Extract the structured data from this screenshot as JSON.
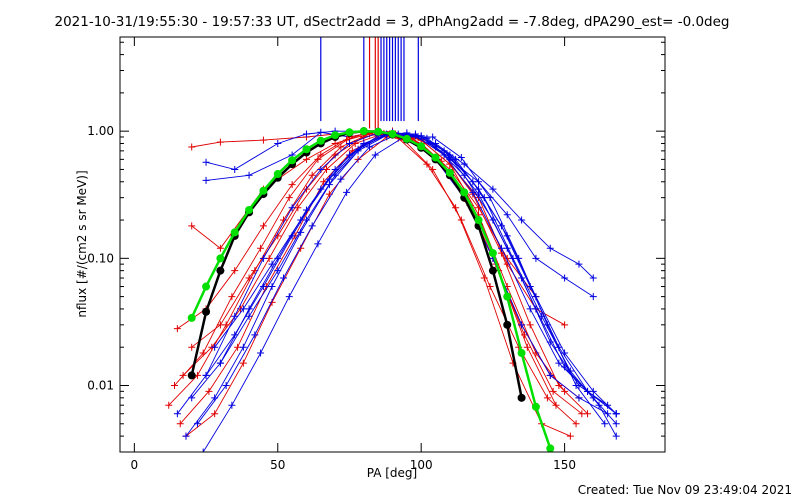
{
  "chart_data": {
    "type": "scatter",
    "title": "2021-10-31/19:55:30 - 19:57:33 UT, dSectr2add = 3, dPhAng2add = -7.8deg, dPA290_est= -0.0deg",
    "xlabel": "PA [deg]",
    "ylabel": "nflux [#/(cm2 s sr MeV)]",
    "x_scale": "linear",
    "y_scale": "log",
    "xlim": [
      -5,
      185
    ],
    "ylim": [
      0.003,
      5.5
    ],
    "x_ticks": [
      0,
      50,
      100,
      150
    ],
    "x_tick_labels": [
      "0",
      "50",
      "100",
      "150"
    ],
    "y_ticks": [
      0.01,
      0.1,
      1.0
    ],
    "y_tick_labels": [
      "0.01",
      "0.10",
      "1.00"
    ],
    "grid": false,
    "legend": "none",
    "footer": "Created: Tue Nov 09 23:49:04 2021",
    "colors": {
      "red": "#e00000",
      "blue": "#0000e0",
      "green": "#00e000",
      "black": "#000000"
    },
    "fit_curves": [
      {
        "color": "green",
        "marker": "filled-circle",
        "x": [
          20,
          25,
          30,
          35,
          40,
          45,
          50,
          55,
          60,
          65,
          70,
          75,
          80,
          85,
          90,
          95,
          100,
          105,
          110,
          115,
          120,
          125,
          130,
          135,
          140,
          145
        ],
        "y": [
          0.034,
          0.06,
          0.1,
          0.16,
          0.24,
          0.34,
          0.46,
          0.59,
          0.72,
          0.84,
          0.93,
          0.98,
          1.0,
          0.99,
          0.95,
          0.87,
          0.76,
          0.62,
          0.47,
          0.33,
          0.2,
          0.11,
          0.05,
          0.018,
          0.0068,
          0.0032
        ]
      },
      {
        "color": "black",
        "marker": "filled-circle",
        "x": [
          20,
          25,
          30,
          35,
          40,
          45,
          50,
          55,
          60,
          65,
          70,
          75,
          80,
          85,
          90,
          95,
          100,
          105,
          110,
          115,
          120,
          125,
          130,
          135
        ],
        "y": [
          0.012,
          0.038,
          0.08,
          0.15,
          0.23,
          0.32,
          0.43,
          0.55,
          0.68,
          0.8,
          0.9,
          0.97,
          1.0,
          0.99,
          0.94,
          0.86,
          0.74,
          0.6,
          0.45,
          0.3,
          0.18,
          0.08,
          0.03,
          0.008
        ]
      }
    ],
    "series": [
      {
        "color": "red",
        "x": [
          20,
          30,
          45,
          60,
          70,
          80,
          85,
          90,
          100,
          110,
          120,
          130,
          140,
          150
        ],
        "y": [
          0.75,
          0.82,
          0.85,
          0.9,
          0.95,
          1.0,
          1.0,
          0.97,
          0.85,
          0.55,
          0.3,
          0.09,
          0.04,
          0.03
        ]
      },
      {
        "color": "blue",
        "x": [
          25,
          35,
          50,
          60,
          70,
          80,
          90,
          100,
          110,
          120,
          130,
          140,
          150,
          160
        ],
        "y": [
          0.57,
          0.5,
          0.8,
          0.95,
          1.0,
          1.0,
          0.97,
          0.9,
          0.6,
          0.4,
          0.22,
          0.1,
          0.07,
          0.05
        ]
      },
      {
        "color": "blue",
        "x": [
          25,
          40,
          55,
          65,
          75,
          85,
          95,
          105,
          115,
          125,
          135,
          145,
          155,
          160
        ],
        "y": [
          0.41,
          0.45,
          0.65,
          0.98,
          0.9,
          1.0,
          0.95,
          0.8,
          0.55,
          0.35,
          0.2,
          0.12,
          0.09,
          0.07
        ]
      },
      {
        "color": "red",
        "x": [
          20,
          30,
          45,
          60,
          70,
          80,
          90,
          100,
          110,
          120,
          130,
          140
        ],
        "y": [
          0.18,
          0.12,
          0.35,
          0.6,
          0.8,
          0.95,
          1.0,
          0.8,
          0.5,
          0.25,
          0.1,
          0.05
        ]
      },
      {
        "color": "red",
        "x": [
          15,
          25,
          35,
          45,
          55,
          65,
          75,
          85,
          95,
          105,
          115,
          125,
          135,
          145,
          155
        ],
        "y": [
          0.028,
          0.04,
          0.08,
          0.18,
          0.38,
          0.65,
          0.9,
          1.0,
          0.9,
          0.6,
          0.3,
          0.1,
          0.03,
          0.012,
          0.008
        ]
      },
      {
        "color": "red",
        "x": [
          12,
          22,
          32,
          42,
          52,
          62,
          72,
          82,
          92,
          102,
          112,
          122,
          132,
          142,
          152
        ],
        "y": [
          0.007,
          0.012,
          0.03,
          0.08,
          0.2,
          0.45,
          0.75,
          0.95,
          0.88,
          0.55,
          0.25,
          0.07,
          0.015,
          0.005,
          0.004
        ]
      },
      {
        "color": "red",
        "x": [
          14,
          24,
          34,
          44,
          54,
          64,
          74,
          84,
          94,
          104,
          114,
          124,
          134,
          144,
          154
        ],
        "y": [
          0.01,
          0.018,
          0.05,
          0.12,
          0.3,
          0.6,
          0.85,
          0.98,
          0.85,
          0.5,
          0.2,
          0.06,
          0.02,
          0.008,
          0.005
        ]
      },
      {
        "color": "red",
        "x": [
          16,
          26,
          36,
          46,
          56,
          66,
          76,
          86,
          96,
          106,
          116,
          126,
          136,
          146,
          156
        ],
        "y": [
          0.005,
          0.009,
          0.02,
          0.06,
          0.15,
          0.4,
          0.7,
          0.93,
          0.9,
          0.6,
          0.28,
          0.09,
          0.025,
          0.009,
          0.006
        ]
      },
      {
        "color": "red",
        "x": [
          18,
          28,
          38,
          48,
          58,
          68,
          78,
          88,
          98,
          108,
          118,
          128,
          138,
          148,
          158
        ],
        "y": [
          0.004,
          0.006,
          0.015,
          0.045,
          0.12,
          0.32,
          0.6,
          0.9,
          0.92,
          0.65,
          0.32,
          0.11,
          0.03,
          0.01,
          0.006
        ]
      },
      {
        "color": "red",
        "x": [
          20,
          30,
          40,
          50,
          60,
          70,
          80,
          90,
          100,
          110,
          120,
          130,
          140,
          150
        ],
        "y": [
          0.02,
          0.03,
          0.07,
          0.15,
          0.35,
          0.65,
          0.9,
          1.0,
          0.85,
          0.55,
          0.22,
          0.06,
          0.018,
          0.009
        ]
      },
      {
        "color": "red",
        "x": [
          17,
          27,
          37,
          47,
          57,
          67,
          77,
          87,
          97,
          107,
          117,
          127,
          137,
          147
        ],
        "y": [
          0.012,
          0.02,
          0.04,
          0.1,
          0.25,
          0.5,
          0.8,
          0.96,
          0.88,
          0.58,
          0.26,
          0.08,
          0.02,
          0.007
        ]
      },
      {
        "color": "blue",
        "x": [
          15,
          25,
          35,
          45,
          55,
          65,
          75,
          85,
          95,
          105,
          115,
          125,
          135,
          145,
          155,
          165
        ],
        "y": [
          0.006,
          0.012,
          0.035,
          0.1,
          0.25,
          0.5,
          0.8,
          0.97,
          0.9,
          0.6,
          0.3,
          0.1,
          0.03,
          0.012,
          0.008,
          0.006
        ]
      },
      {
        "color": "blue",
        "x": [
          18,
          28,
          38,
          48,
          58,
          68,
          78,
          88,
          98,
          108,
          118,
          128,
          138,
          148,
          158,
          168
        ],
        "y": [
          0.004,
          0.008,
          0.02,
          0.06,
          0.16,
          0.38,
          0.7,
          0.93,
          0.92,
          0.65,
          0.33,
          0.12,
          0.04,
          0.015,
          0.009,
          0.006
        ]
      },
      {
        "color": "blue",
        "x": [
          20,
          30,
          40,
          50,
          60,
          70,
          80,
          90,
          100,
          110,
          120,
          130,
          140,
          150,
          160,
          168
        ],
        "y": [
          0.008,
          0.015,
          0.04,
          0.1,
          0.24,
          0.5,
          0.8,
          0.98,
          0.9,
          0.62,
          0.32,
          0.12,
          0.04,
          0.014,
          0.008,
          0.005
        ]
      },
      {
        "color": "blue",
        "x": [
          22,
          32,
          42,
          52,
          62,
          72,
          82,
          92,
          102,
          112,
          122,
          132,
          142,
          152,
          162,
          168
        ],
        "y": [
          0.005,
          0.01,
          0.025,
          0.07,
          0.18,
          0.42,
          0.75,
          0.95,
          0.88,
          0.6,
          0.3,
          0.1,
          0.035,
          0.013,
          0.007,
          0.004
        ]
      },
      {
        "color": "blue",
        "x": [
          25,
          35,
          45,
          55,
          65,
          75,
          85,
          95,
          105,
          115,
          125,
          135,
          145,
          155,
          165
        ],
        "y": [
          0.012,
          0.025,
          0.06,
          0.15,
          0.35,
          0.65,
          0.92,
          0.97,
          0.75,
          0.45,
          0.2,
          0.07,
          0.022,
          0.01,
          0.007
        ]
      },
      {
        "color": "blue",
        "x": [
          28,
          38,
          48,
          58,
          68,
          78,
          88,
          98,
          108,
          118,
          128,
          138,
          148,
          158,
          168
        ],
        "y": [
          0.02,
          0.04,
          0.09,
          0.2,
          0.42,
          0.72,
          0.95,
          0.95,
          0.7,
          0.4,
          0.18,
          0.06,
          0.02,
          0.009,
          0.006
        ]
      },
      {
        "color": "blue",
        "x": [
          24,
          34,
          44,
          54,
          64,
          74,
          84,
          94,
          104,
          114,
          124,
          134,
          144,
          154,
          164
        ],
        "y": [
          0.003,
          0.007,
          0.018,
          0.05,
          0.13,
          0.33,
          0.65,
          0.9,
          0.9,
          0.62,
          0.3,
          0.1,
          0.03,
          0.01,
          0.005
        ]
      },
      {
        "color": "blue",
        "x": [
          30,
          40,
          50,
          60,
          70,
          80,
          90,
          100,
          110,
          120,
          130,
          140,
          150,
          160,
          168
        ],
        "y": [
          0.015,
          0.035,
          0.08,
          0.2,
          0.45,
          0.78,
          0.97,
          0.92,
          0.65,
          0.35,
          0.15,
          0.05,
          0.018,
          0.009,
          0.006
        ]
      }
    ],
    "vertical_markers": [
      {
        "color": "blue",
        "x": [
          65,
          80,
          86,
          87,
          88,
          89,
          90,
          91,
          92,
          93,
          94,
          99
        ],
        "y_bottom": 1.2
      },
      {
        "color": "red",
        "x": [
          82,
          84,
          85
        ],
        "y_bottom": 1.05
      }
    ]
  }
}
